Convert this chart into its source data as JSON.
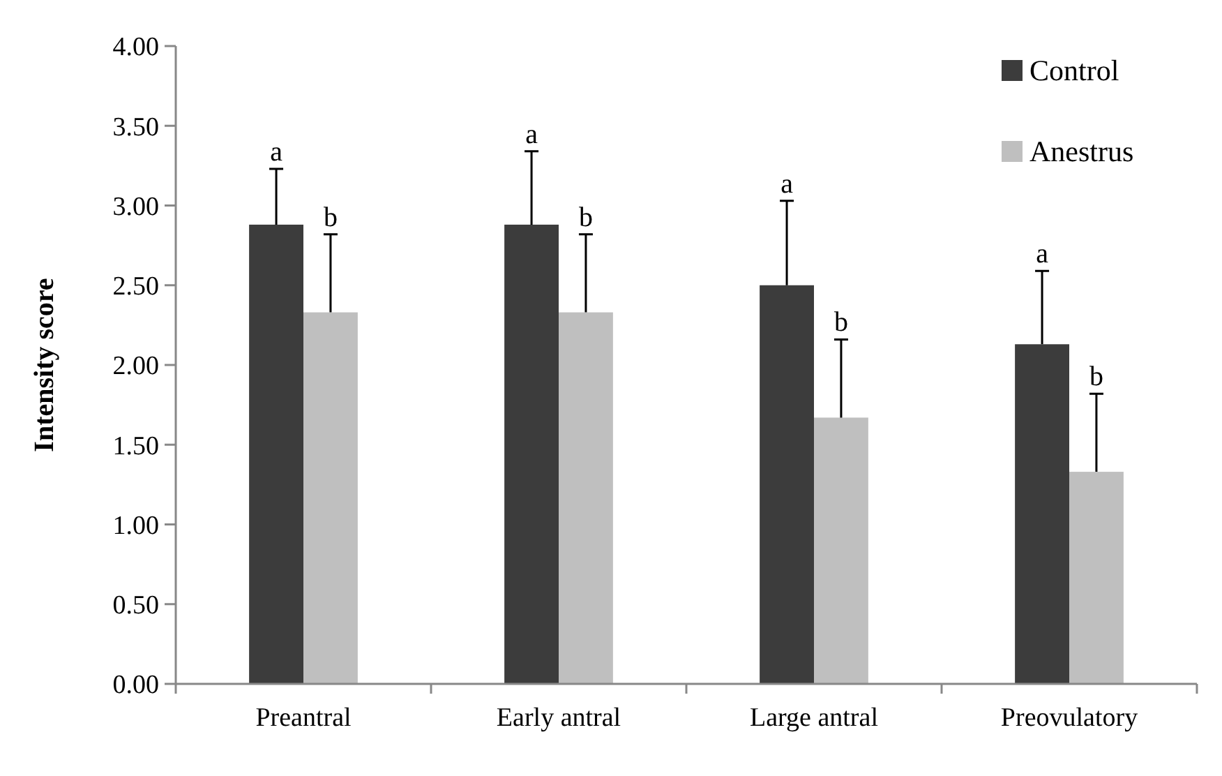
{
  "chart_data": {
    "type": "bar",
    "ylabel": "Intensity score",
    "categories": [
      "Preantral",
      "Early antral",
      "Large antral",
      "Preovulatory"
    ],
    "series": [
      {
        "name": "Control",
        "color": "#3c3c3c",
        "values": [
          2.88,
          2.88,
          2.5,
          2.13
        ],
        "errors": [
          [
            2.88,
            3.23
          ],
          [
            2.88,
            3.34
          ],
          [
            2.5,
            3.03
          ],
          [
            2.13,
            2.59
          ]
        ]
      },
      {
        "name": "Anestrus",
        "color": "#bfbfbf",
        "values": [
          2.33,
          2.33,
          1.67,
          1.33
        ],
        "errors": [
          [
            2.33,
            2.82
          ],
          [
            2.33,
            2.82
          ],
          [
            1.67,
            2.16
          ],
          [
            1.33,
            1.82
          ]
        ]
      }
    ],
    "ylim": [
      0,
      4
    ],
    "yticks": [
      {
        "value": 0,
        "label": "0.00"
      },
      {
        "value": 0.5,
        "label": "0.50"
      },
      {
        "value": 1,
        "label": "1.00"
      },
      {
        "value": 1.5,
        "label": "1.50"
      },
      {
        "value": 2,
        "label": "2.00"
      },
      {
        "value": 2.5,
        "label": "2.50"
      },
      {
        "value": 3,
        "label": "3.00"
      },
      {
        "value": 3.5,
        "label": "3.50"
      },
      {
        "value": 4,
        "label": "4.00"
      }
    ],
    "grid": false,
    "legend": "top right",
    "annotations": [
      "a",
      "b",
      "a",
      "b",
      "a",
      "b",
      "a",
      "b"
    ]
  }
}
